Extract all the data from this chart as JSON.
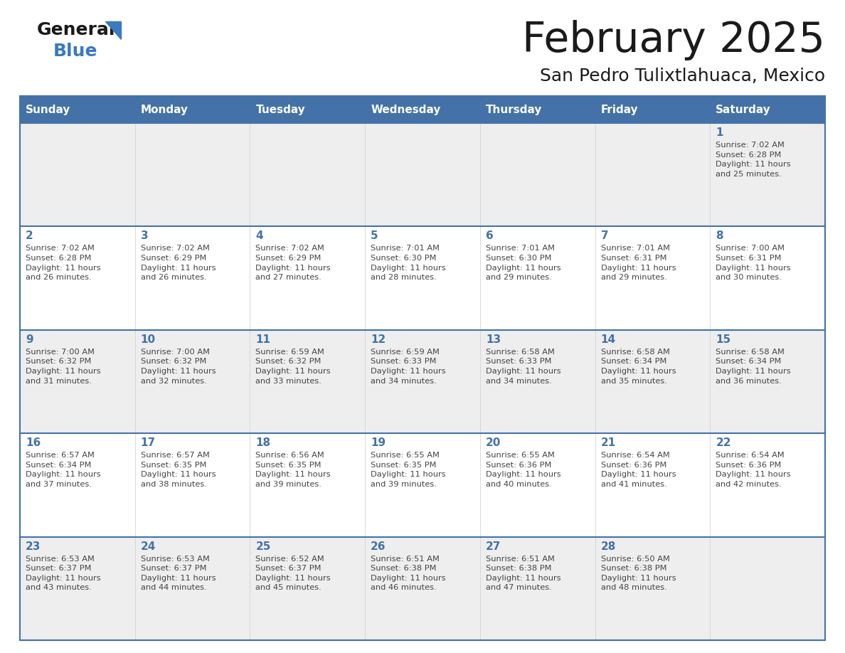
{
  "title": "February 2025",
  "subtitle": "San Pedro Tulixtlahuaca, Mexico",
  "days_of_week": [
    "Sunday",
    "Monday",
    "Tuesday",
    "Wednesday",
    "Thursday",
    "Friday",
    "Saturday"
  ],
  "header_bg": "#4472a8",
  "header_text": "#ffffff",
  "row_bg": [
    "#eeeeee",
    "#ffffff",
    "#eeeeee",
    "#ffffff",
    "#eeeeee"
  ],
  "border_color": "#4472a8",
  "day_num_color": "#4472a8",
  "info_color": "#444444",
  "title_color": "#1a1a1a",
  "logo_general_color": "#1a1a1a",
  "logo_blue_color": "#3a7abf",
  "calendar_data": [
    {
      "day": 1,
      "col": 6,
      "row": 0,
      "sunrise": "7:02 AM",
      "sunset": "6:28 PM",
      "daylight": "11 hours\nand 25 minutes."
    },
    {
      "day": 2,
      "col": 0,
      "row": 1,
      "sunrise": "7:02 AM",
      "sunset": "6:28 PM",
      "daylight": "11 hours\nand 26 minutes."
    },
    {
      "day": 3,
      "col": 1,
      "row": 1,
      "sunrise": "7:02 AM",
      "sunset": "6:29 PM",
      "daylight": "11 hours\nand 26 minutes."
    },
    {
      "day": 4,
      "col": 2,
      "row": 1,
      "sunrise": "7:02 AM",
      "sunset": "6:29 PM",
      "daylight": "11 hours\nand 27 minutes."
    },
    {
      "day": 5,
      "col": 3,
      "row": 1,
      "sunrise": "7:01 AM",
      "sunset": "6:30 PM",
      "daylight": "11 hours\nand 28 minutes."
    },
    {
      "day": 6,
      "col": 4,
      "row": 1,
      "sunrise": "7:01 AM",
      "sunset": "6:30 PM",
      "daylight": "11 hours\nand 29 minutes."
    },
    {
      "day": 7,
      "col": 5,
      "row": 1,
      "sunrise": "7:01 AM",
      "sunset": "6:31 PM",
      "daylight": "11 hours\nand 29 minutes."
    },
    {
      "day": 8,
      "col": 6,
      "row": 1,
      "sunrise": "7:00 AM",
      "sunset": "6:31 PM",
      "daylight": "11 hours\nand 30 minutes."
    },
    {
      "day": 9,
      "col": 0,
      "row": 2,
      "sunrise": "7:00 AM",
      "sunset": "6:32 PM",
      "daylight": "11 hours\nand 31 minutes."
    },
    {
      "day": 10,
      "col": 1,
      "row": 2,
      "sunrise": "7:00 AM",
      "sunset": "6:32 PM",
      "daylight": "11 hours\nand 32 minutes."
    },
    {
      "day": 11,
      "col": 2,
      "row": 2,
      "sunrise": "6:59 AM",
      "sunset": "6:32 PM",
      "daylight": "11 hours\nand 33 minutes."
    },
    {
      "day": 12,
      "col": 3,
      "row": 2,
      "sunrise": "6:59 AM",
      "sunset": "6:33 PM",
      "daylight": "11 hours\nand 34 minutes."
    },
    {
      "day": 13,
      "col": 4,
      "row": 2,
      "sunrise": "6:58 AM",
      "sunset": "6:33 PM",
      "daylight": "11 hours\nand 34 minutes."
    },
    {
      "day": 14,
      "col": 5,
      "row": 2,
      "sunrise": "6:58 AM",
      "sunset": "6:34 PM",
      "daylight": "11 hours\nand 35 minutes."
    },
    {
      "day": 15,
      "col": 6,
      "row": 2,
      "sunrise": "6:58 AM",
      "sunset": "6:34 PM",
      "daylight": "11 hours\nand 36 minutes."
    },
    {
      "day": 16,
      "col": 0,
      "row": 3,
      "sunrise": "6:57 AM",
      "sunset": "6:34 PM",
      "daylight": "11 hours\nand 37 minutes."
    },
    {
      "day": 17,
      "col": 1,
      "row": 3,
      "sunrise": "6:57 AM",
      "sunset": "6:35 PM",
      "daylight": "11 hours\nand 38 minutes."
    },
    {
      "day": 18,
      "col": 2,
      "row": 3,
      "sunrise": "6:56 AM",
      "sunset": "6:35 PM",
      "daylight": "11 hours\nand 39 minutes."
    },
    {
      "day": 19,
      "col": 3,
      "row": 3,
      "sunrise": "6:55 AM",
      "sunset": "6:35 PM",
      "daylight": "11 hours\nand 39 minutes."
    },
    {
      "day": 20,
      "col": 4,
      "row": 3,
      "sunrise": "6:55 AM",
      "sunset": "6:36 PM",
      "daylight": "11 hours\nand 40 minutes."
    },
    {
      "day": 21,
      "col": 5,
      "row": 3,
      "sunrise": "6:54 AM",
      "sunset": "6:36 PM",
      "daylight": "11 hours\nand 41 minutes."
    },
    {
      "day": 22,
      "col": 6,
      "row": 3,
      "sunrise": "6:54 AM",
      "sunset": "6:36 PM",
      "daylight": "11 hours\nand 42 minutes."
    },
    {
      "day": 23,
      "col": 0,
      "row": 4,
      "sunrise": "6:53 AM",
      "sunset": "6:37 PM",
      "daylight": "11 hours\nand 43 minutes."
    },
    {
      "day": 24,
      "col": 1,
      "row": 4,
      "sunrise": "6:53 AM",
      "sunset": "6:37 PM",
      "daylight": "11 hours\nand 44 minutes."
    },
    {
      "day": 25,
      "col": 2,
      "row": 4,
      "sunrise": "6:52 AM",
      "sunset": "6:37 PM",
      "daylight": "11 hours\nand 45 minutes."
    },
    {
      "day": 26,
      "col": 3,
      "row": 4,
      "sunrise": "6:51 AM",
      "sunset": "6:38 PM",
      "daylight": "11 hours\nand 46 minutes."
    },
    {
      "day": 27,
      "col": 4,
      "row": 4,
      "sunrise": "6:51 AM",
      "sunset": "6:38 PM",
      "daylight": "11 hours\nand 47 minutes."
    },
    {
      "day": 28,
      "col": 5,
      "row": 4,
      "sunrise": "6:50 AM",
      "sunset": "6:38 PM",
      "daylight": "11 hours\nand 48 minutes."
    }
  ]
}
